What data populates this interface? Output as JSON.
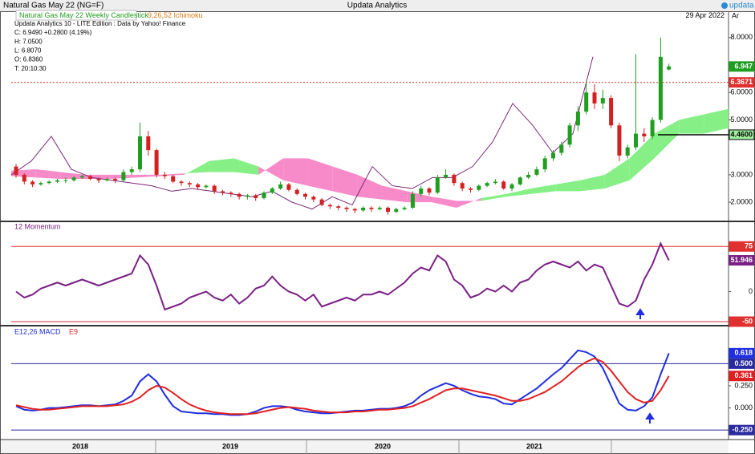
{
  "window": {
    "title": "Natural Gas May 22 (NG=F)",
    "app": "Updata Analytics",
    "logo": "updata",
    "axis_tag": "Ar"
  },
  "x_axis": {
    "labels": [
      "2018",
      "2019",
      "2020",
      "2021"
    ]
  },
  "chart_data": [
    {
      "type": "candlestick",
      "title": "Natural Gas May 22 Weekly Candlestick",
      "overlay": "9,26,52 Ichimoku",
      "date": "29 Apr 2022",
      "source": "Updata Analytics 10 - LITE Edition : Data by Yahoo! Finance",
      "info": [
        "C: 6.9490 +0.2800 (4.19%)",
        "H: 7.0500",
        "L: 6.8070",
        "O: 6.8360",
        "T: 20:10:30"
      ],
      "open": [
        3.3,
        3.0,
        2.75,
        2.65,
        2.7,
        2.75,
        2.8,
        2.8,
        2.9,
        2.95,
        2.85,
        2.8,
        2.85,
        2.8,
        3.1,
        3.2,
        4.4,
        3.9,
        3.0,
        2.95,
        2.75,
        2.7,
        2.65,
        2.55,
        2.6,
        2.4,
        2.35,
        2.3,
        2.2,
        2.25,
        2.15,
        2.35,
        2.5,
        2.65,
        2.45,
        2.3,
        2.2,
        2.1,
        1.9,
        1.85,
        1.8,
        1.75,
        1.7,
        1.8,
        1.75,
        1.8,
        1.65,
        1.75,
        1.8,
        2.3,
        2.5,
        2.35,
        2.9,
        3.0,
        2.7,
        2.5,
        2.45,
        2.6,
        2.7,
        2.75,
        2.5,
        2.65,
        2.9,
        3.0,
        3.2,
        3.6,
        3.8,
        4.1,
        4.8,
        5.3,
        6.0,
        5.6,
        5.8,
        4.8,
        3.7,
        4.0,
        4.5,
        4.4,
        5.0,
        6.836
      ],
      "high": [
        3.4,
        3.05,
        2.8,
        2.75,
        2.8,
        2.85,
        2.9,
        2.95,
        3.0,
        3.0,
        2.9,
        2.9,
        2.9,
        3.2,
        3.3,
        4.9,
        4.6,
        3.95,
        3.1,
        3.0,
        2.8,
        2.75,
        2.7,
        2.65,
        2.65,
        2.45,
        2.4,
        2.35,
        2.3,
        2.3,
        2.4,
        2.55,
        2.75,
        2.7,
        2.5,
        2.35,
        2.25,
        2.15,
        1.95,
        1.9,
        1.85,
        1.8,
        1.85,
        1.85,
        1.85,
        1.85,
        1.8,
        1.85,
        2.4,
        2.6,
        2.55,
        3.0,
        3.2,
        3.05,
        2.75,
        2.55,
        2.65,
        2.75,
        2.85,
        2.8,
        2.7,
        2.95,
        3.1,
        3.3,
        3.7,
        3.9,
        4.2,
        4.9,
        5.5,
        6.4,
        6.3,
        6.1,
        5.9,
        4.9,
        4.1,
        7.4,
        4.7,
        5.1,
        8.0,
        7.05
      ],
      "low": [
        2.9,
        2.65,
        2.55,
        2.6,
        2.65,
        2.7,
        2.7,
        2.75,
        2.85,
        2.8,
        2.7,
        2.75,
        2.7,
        2.75,
        3.0,
        3.1,
        3.7,
        2.9,
        2.85,
        2.7,
        2.6,
        2.55,
        2.45,
        2.5,
        2.3,
        2.25,
        2.2,
        2.1,
        2.1,
        2.05,
        2.1,
        2.3,
        2.45,
        2.4,
        2.25,
        2.1,
        2.0,
        1.85,
        1.75,
        1.7,
        1.65,
        1.6,
        1.65,
        1.65,
        1.7,
        1.55,
        1.6,
        1.7,
        1.75,
        2.2,
        2.25,
        2.3,
        2.85,
        2.6,
        2.4,
        2.35,
        2.4,
        2.55,
        2.65,
        2.45,
        2.4,
        2.6,
        2.85,
        2.95,
        3.1,
        3.5,
        3.7,
        4.0,
        4.6,
        5.2,
        5.4,
        5.4,
        4.7,
        3.5,
        3.6,
        3.9,
        4.2,
        4.3,
        4.9,
        6.807
      ],
      "close": [
        3.0,
        2.75,
        2.65,
        2.7,
        2.75,
        2.8,
        2.8,
        2.9,
        2.95,
        2.85,
        2.8,
        2.85,
        2.8,
        3.1,
        3.2,
        4.4,
        3.9,
        3.0,
        2.95,
        2.75,
        2.7,
        2.65,
        2.55,
        2.6,
        2.4,
        2.35,
        2.3,
        2.2,
        2.25,
        2.15,
        2.35,
        2.5,
        2.65,
        2.45,
        2.3,
        2.2,
        2.1,
        1.9,
        1.85,
        1.8,
        1.75,
        1.7,
        1.8,
        1.75,
        1.8,
        1.65,
        1.75,
        1.8,
        2.3,
        2.5,
        2.35,
        2.9,
        3.0,
        2.7,
        2.5,
        2.45,
        2.6,
        2.7,
        2.75,
        2.5,
        2.65,
        2.9,
        3.0,
        3.2,
        3.6,
        3.8,
        4.1,
        4.8,
        5.3,
        6.0,
        5.6,
        5.8,
        4.8,
        3.7,
        4.0,
        4.5,
        4.4,
        5.0,
        7.3,
        6.949
      ],
      "up_color": "#1f9e1f",
      "down_color": "#d42020",
      "ichimoku": {
        "span_a": [
          2.95,
          2.9,
          2.85,
          2.85,
          2.85,
          2.9,
          2.95,
          3.0,
          3.5,
          3.6,
          3.3,
          2.8,
          2.6,
          2.4,
          2.2,
          2.1,
          2.0,
          2.0,
          1.8,
          2.15,
          2.3,
          2.5,
          2.65,
          2.8,
          3.0,
          3.6,
          4.5,
          5.0,
          5.2,
          5.4
        ],
        "span_b": [
          3.15,
          3.2,
          3.1,
          3.0,
          3.0,
          3.0,
          3.0,
          3.05,
          3.1,
          3.1,
          3.0,
          3.6,
          3.6,
          3.3,
          3.0,
          2.6,
          2.4,
          2.2,
          2.05,
          2.05,
          2.2,
          2.3,
          2.4,
          2.4,
          2.5,
          2.8,
          3.6,
          4.5,
          4.5,
          4.7
        ],
        "bull_color": "#86f086",
        "bear_color": "#f78ac8",
        "lagging": [
          3.0,
          3.5,
          4.4,
          3.2,
          2.9,
          2.8,
          2.7,
          2.6,
          2.4,
          2.5,
          2.4,
          2.3,
          2.2,
          2.4,
          2.0,
          1.75,
          2.2,
          1.9,
          3.3,
          2.6,
          2.5,
          2.9,
          2.9,
          3.3,
          4.2,
          5.6,
          4.8,
          3.8,
          4.5,
          7.3
        ],
        "lagging_color": "#7a2a7a"
      },
      "ylim": [
        1.36,
        8.61
      ],
      "yticks": [
        {
          "value": 2,
          "label": "2.0000"
        },
        {
          "value": 3,
          "label": "3.0000"
        },
        {
          "value": 5,
          "label": "5.0000"
        },
        {
          "value": 6,
          "label": "6.0000"
        },
        {
          "value": 8,
          "label": "8.0000"
        }
      ],
      "last_price": 6.947,
      "levels": [
        6.3671
      ],
      "level_color": "#e03030",
      "support": {
        "value": 4.46,
        "label": "4.4600"
      }
    },
    {
      "type": "line",
      "title": "12 Momentum",
      "color": "#7b1f86",
      "values": [
        0,
        -10,
        -5,
        5,
        10,
        15,
        10,
        15,
        20,
        15,
        10,
        15,
        20,
        25,
        30,
        60,
        45,
        10,
        -30,
        -25,
        -20,
        -10,
        -5,
        0,
        -10,
        -15,
        -5,
        -20,
        -10,
        5,
        10,
        25,
        10,
        0,
        -5,
        -15,
        -5,
        -25,
        -20,
        -15,
        -10,
        -15,
        -5,
        -5,
        0,
        -5,
        5,
        15,
        30,
        40,
        35,
        60,
        50,
        20,
        10,
        -10,
        -5,
        5,
        0,
        10,
        0,
        15,
        20,
        35,
        45,
        50,
        45,
        40,
        50,
        35,
        45,
        40,
        10,
        -20,
        -25,
        -15,
        20,
        45,
        80,
        51.946
      ],
      "ylim": [
        -54,
        114
      ],
      "yticks": [
        75,
        0,
        -50
      ],
      "levels": [
        75,
        -50
      ],
      "level_color": "#e03030"
    },
    {
      "type": "line",
      "series": [
        {
          "name": "E12,26 MACD",
          "color": "#1f2ee0",
          "values": [
            0.02,
            -0.02,
            -0.03,
            -0.02,
            0.0,
            0.0,
            0.01,
            0.02,
            0.03,
            0.03,
            0.02,
            0.03,
            0.04,
            0.08,
            0.14,
            0.3,
            0.38,
            0.3,
            0.15,
            0.02,
            -0.04,
            -0.05,
            -0.06,
            -0.06,
            -0.07,
            -0.07,
            -0.08,
            -0.08,
            -0.07,
            -0.04,
            0.0,
            0.02,
            0.02,
            0.01,
            -0.02,
            -0.04,
            -0.05,
            -0.06,
            -0.06,
            -0.05,
            -0.04,
            -0.03,
            -0.03,
            -0.02,
            -0.01,
            -0.01,
            0.0,
            0.02,
            0.06,
            0.14,
            0.2,
            0.24,
            0.28,
            0.25,
            0.2,
            0.16,
            0.13,
            0.12,
            0.1,
            0.05,
            0.04,
            0.1,
            0.16,
            0.22,
            0.3,
            0.38,
            0.45,
            0.55,
            0.65,
            0.63,
            0.58,
            0.45,
            0.25,
            0.05,
            -0.02,
            -0.03,
            0.02,
            0.12,
            0.38,
            0.618
          ]
        },
        {
          "name": "E9",
          "color": "#e02020",
          "values": [
            0.03,
            0.01,
            -0.01,
            -0.02,
            -0.02,
            -0.01,
            0.0,
            0.01,
            0.02,
            0.02,
            0.02,
            0.02,
            0.03,
            0.04,
            0.07,
            0.12,
            0.2,
            0.25,
            0.23,
            0.17,
            0.1,
            0.04,
            0.0,
            -0.03,
            -0.05,
            -0.06,
            -0.07,
            -0.07,
            -0.07,
            -0.06,
            -0.04,
            -0.02,
            0.0,
            0.01,
            0.0,
            -0.01,
            -0.03,
            -0.04,
            -0.05,
            -0.05,
            -0.05,
            -0.04,
            -0.04,
            -0.03,
            -0.02,
            -0.02,
            -0.01,
            0.0,
            0.02,
            0.06,
            0.1,
            0.15,
            0.2,
            0.22,
            0.22,
            0.2,
            0.18,
            0.16,
            0.14,
            0.11,
            0.08,
            0.08,
            0.1,
            0.14,
            0.18,
            0.24,
            0.3,
            0.38,
            0.46,
            0.52,
            0.56,
            0.52,
            0.42,
            0.3,
            0.18,
            0.1,
            0.06,
            0.08,
            0.2,
            0.361
          ]
        }
      ],
      "ylim": [
        -0.348,
        0.911
      ],
      "yticks": [
        {
          "value": 0.5,
          "label": "0.500"
        },
        {
          "value": 0.25,
          "label": "0.250"
        },
        {
          "value": 0,
          "label": "0.000"
        },
        {
          "value": -0.25,
          "label": "-0.250"
        }
      ],
      "levels": [
        0.5,
        -0.25
      ],
      "level_color": "#2a2aa0"
    }
  ]
}
